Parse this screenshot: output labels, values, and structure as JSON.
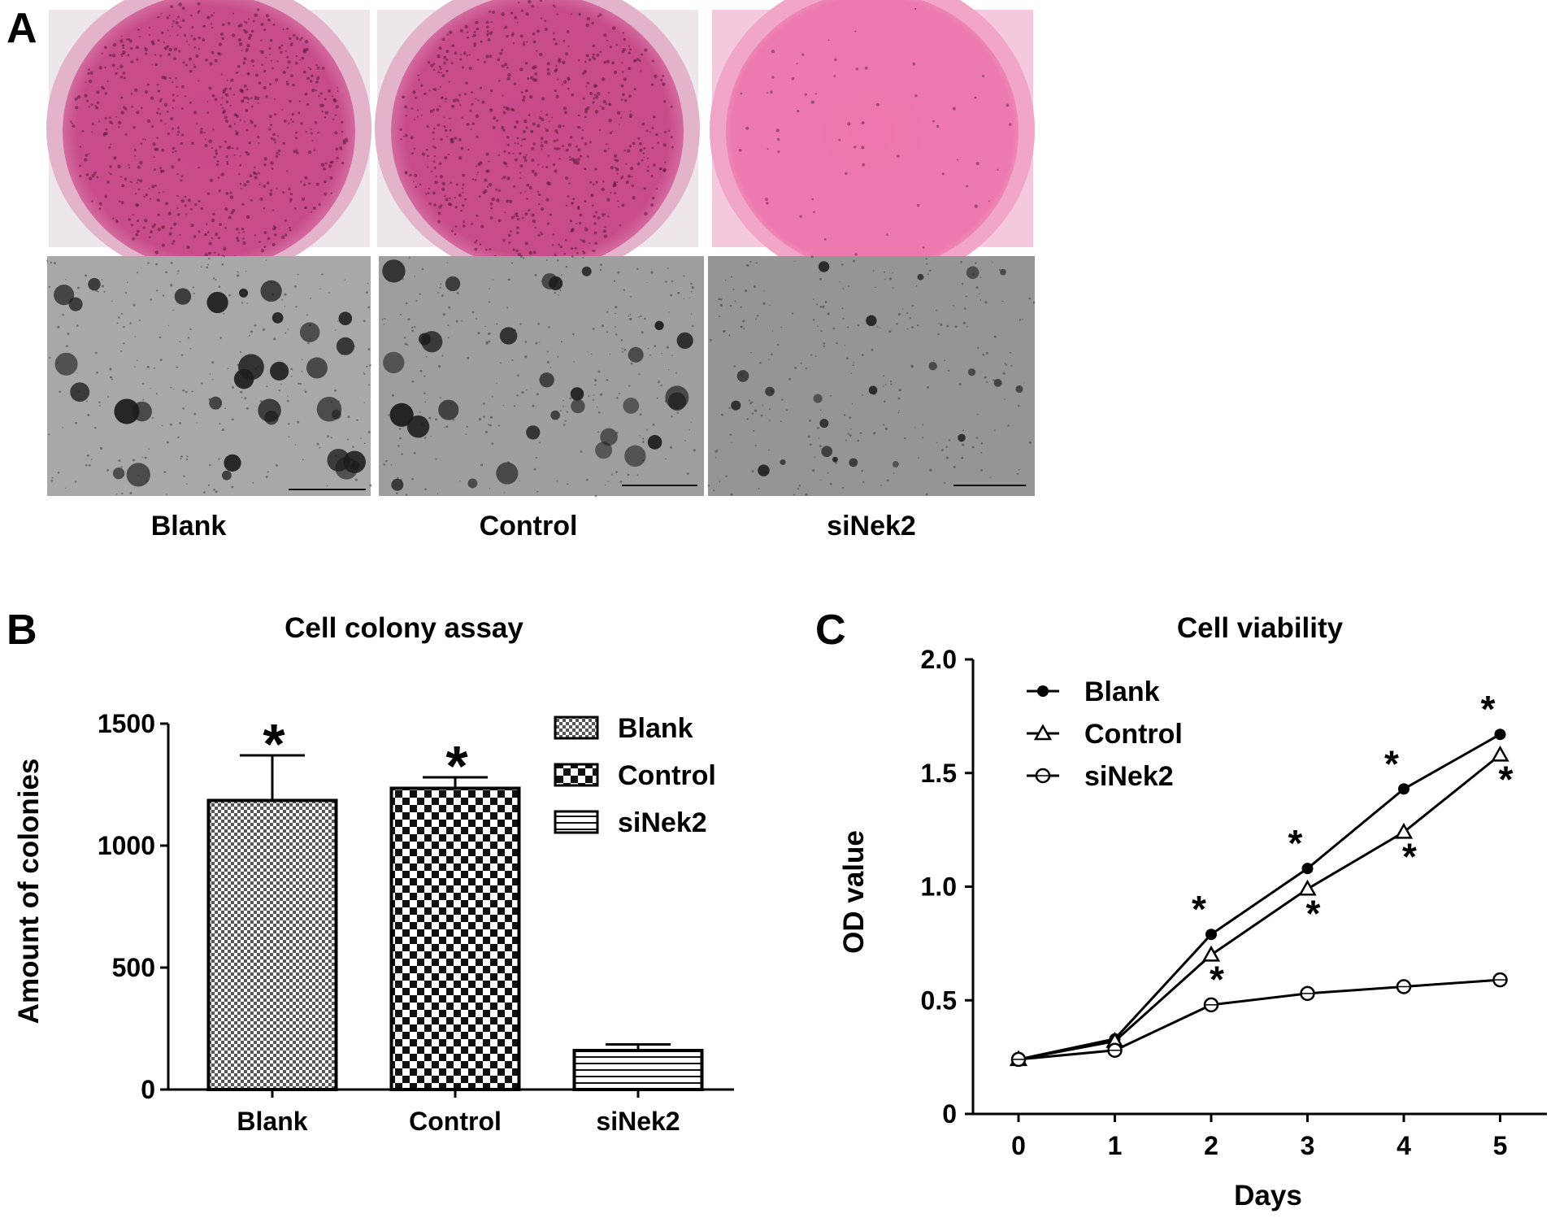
{
  "panel_letters": {
    "a": "A",
    "b": "B",
    "c": "C"
  },
  "panel_a": {
    "labels": [
      "Blank",
      "Control",
      "siNek2"
    ],
    "colors": {
      "dish_pink": "#d4508e",
      "dish_light": "#ee7eb0",
      "micro_gray": "#9a9a9a"
    },
    "icon": "microscopy-image"
  },
  "chart_data": [
    {
      "type": "bar",
      "title": "Cell colony assay",
      "xlabel": "",
      "ylabel": "Amount of colonies",
      "categories": [
        "Blank",
        "Control",
        "siNek2"
      ],
      "values": [
        1185,
        1235,
        160
      ],
      "errors": [
        185,
        45,
        25
      ],
      "significance": [
        "*",
        "*",
        ""
      ],
      "ylim": [
        0,
        1500
      ],
      "yticks": [
        0,
        500,
        1000,
        1500
      ],
      "legend": [
        "Blank",
        "Control",
        "siNek2"
      ],
      "legend_position": "top-right",
      "patterns": [
        "fine-check",
        "checkerboard",
        "horizontal-lines"
      ]
    },
    {
      "type": "line",
      "title": "Cell viability",
      "xlabel": "Days",
      "ylabel": "OD value",
      "x": [
        0,
        1,
        2,
        3,
        4,
        5
      ],
      "ylim": [
        0,
        2.0
      ],
      "yticks": [
        "0",
        "0.5",
        "1.0",
        "1.5",
        "2.0"
      ],
      "legend_position": "top-left",
      "series": [
        {
          "name": "Blank",
          "marker": "filled-circle",
          "values": [
            0.24,
            0.33,
            0.79,
            1.08,
            1.43,
            1.67
          ],
          "stars": [
            false,
            false,
            true,
            true,
            true,
            true
          ]
        },
        {
          "name": "Control",
          "marker": "open-triangle",
          "values": [
            0.24,
            0.32,
            0.7,
            0.99,
            1.24,
            1.58
          ],
          "stars": [
            false,
            false,
            true,
            true,
            true,
            true
          ]
        },
        {
          "name": "siNek2",
          "marker": "open-circle",
          "values": [
            0.24,
            0.28,
            0.48,
            0.53,
            0.56,
            0.59
          ],
          "stars": [
            false,
            false,
            false,
            false,
            false,
            false
          ]
        }
      ],
      "significance_symbol": "*"
    }
  ]
}
